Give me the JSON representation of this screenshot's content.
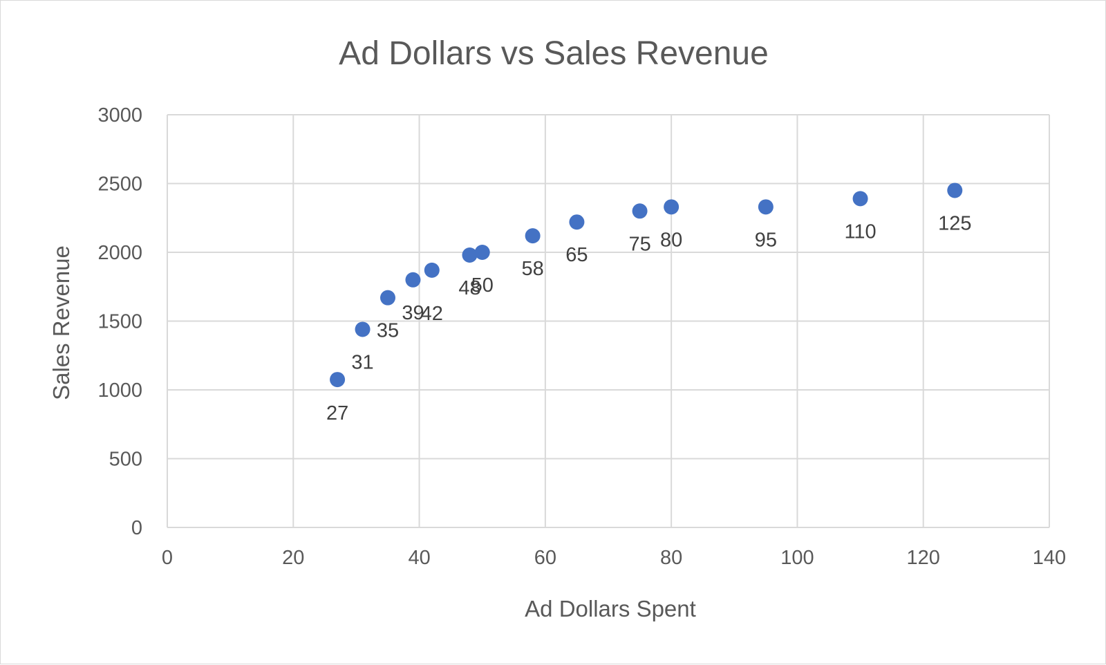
{
  "chart_data": {
    "type": "scatter",
    "title": "Ad Dollars vs Sales Revenue",
    "xlabel": "Ad Dollars Spent",
    "ylabel": "Sales Revenue",
    "xlim": [
      0,
      140
    ],
    "ylim": [
      0,
      3000
    ],
    "x_ticks": [
      "0",
      "20",
      "40",
      "60",
      "80",
      "100",
      "120",
      "140"
    ],
    "y_ticks": [
      "0",
      "500",
      "1000",
      "1500",
      "2000",
      "2500",
      "3000"
    ],
    "grid": true,
    "legend": "none",
    "marker_color": "#4472C4",
    "series": [
      {
        "points": [
          {
            "x": 27,
            "y": 1075,
            "label": "27"
          },
          {
            "x": 31,
            "y": 1440,
            "label": "31"
          },
          {
            "x": 35,
            "y": 1670,
            "label": "35"
          },
          {
            "x": 39,
            "y": 1800,
            "label": "39"
          },
          {
            "x": 42,
            "y": 1870,
            "label": "42"
          },
          {
            "x": 48,
            "y": 1980,
            "label": "48"
          },
          {
            "x": 50,
            "y": 2000,
            "label": "50"
          },
          {
            "x": 58,
            "y": 2120,
            "label": "58"
          },
          {
            "x": 65,
            "y": 2220,
            "label": "65"
          },
          {
            "x": 75,
            "y": 2300,
            "label": "75"
          },
          {
            "x": 80,
            "y": 2330,
            "label": "80"
          },
          {
            "x": 95,
            "y": 2330,
            "label": "95"
          },
          {
            "x": 110,
            "y": 2390,
            "label": "110"
          },
          {
            "x": 125,
            "y": 2450,
            "label": "125"
          }
        ]
      }
    ]
  }
}
